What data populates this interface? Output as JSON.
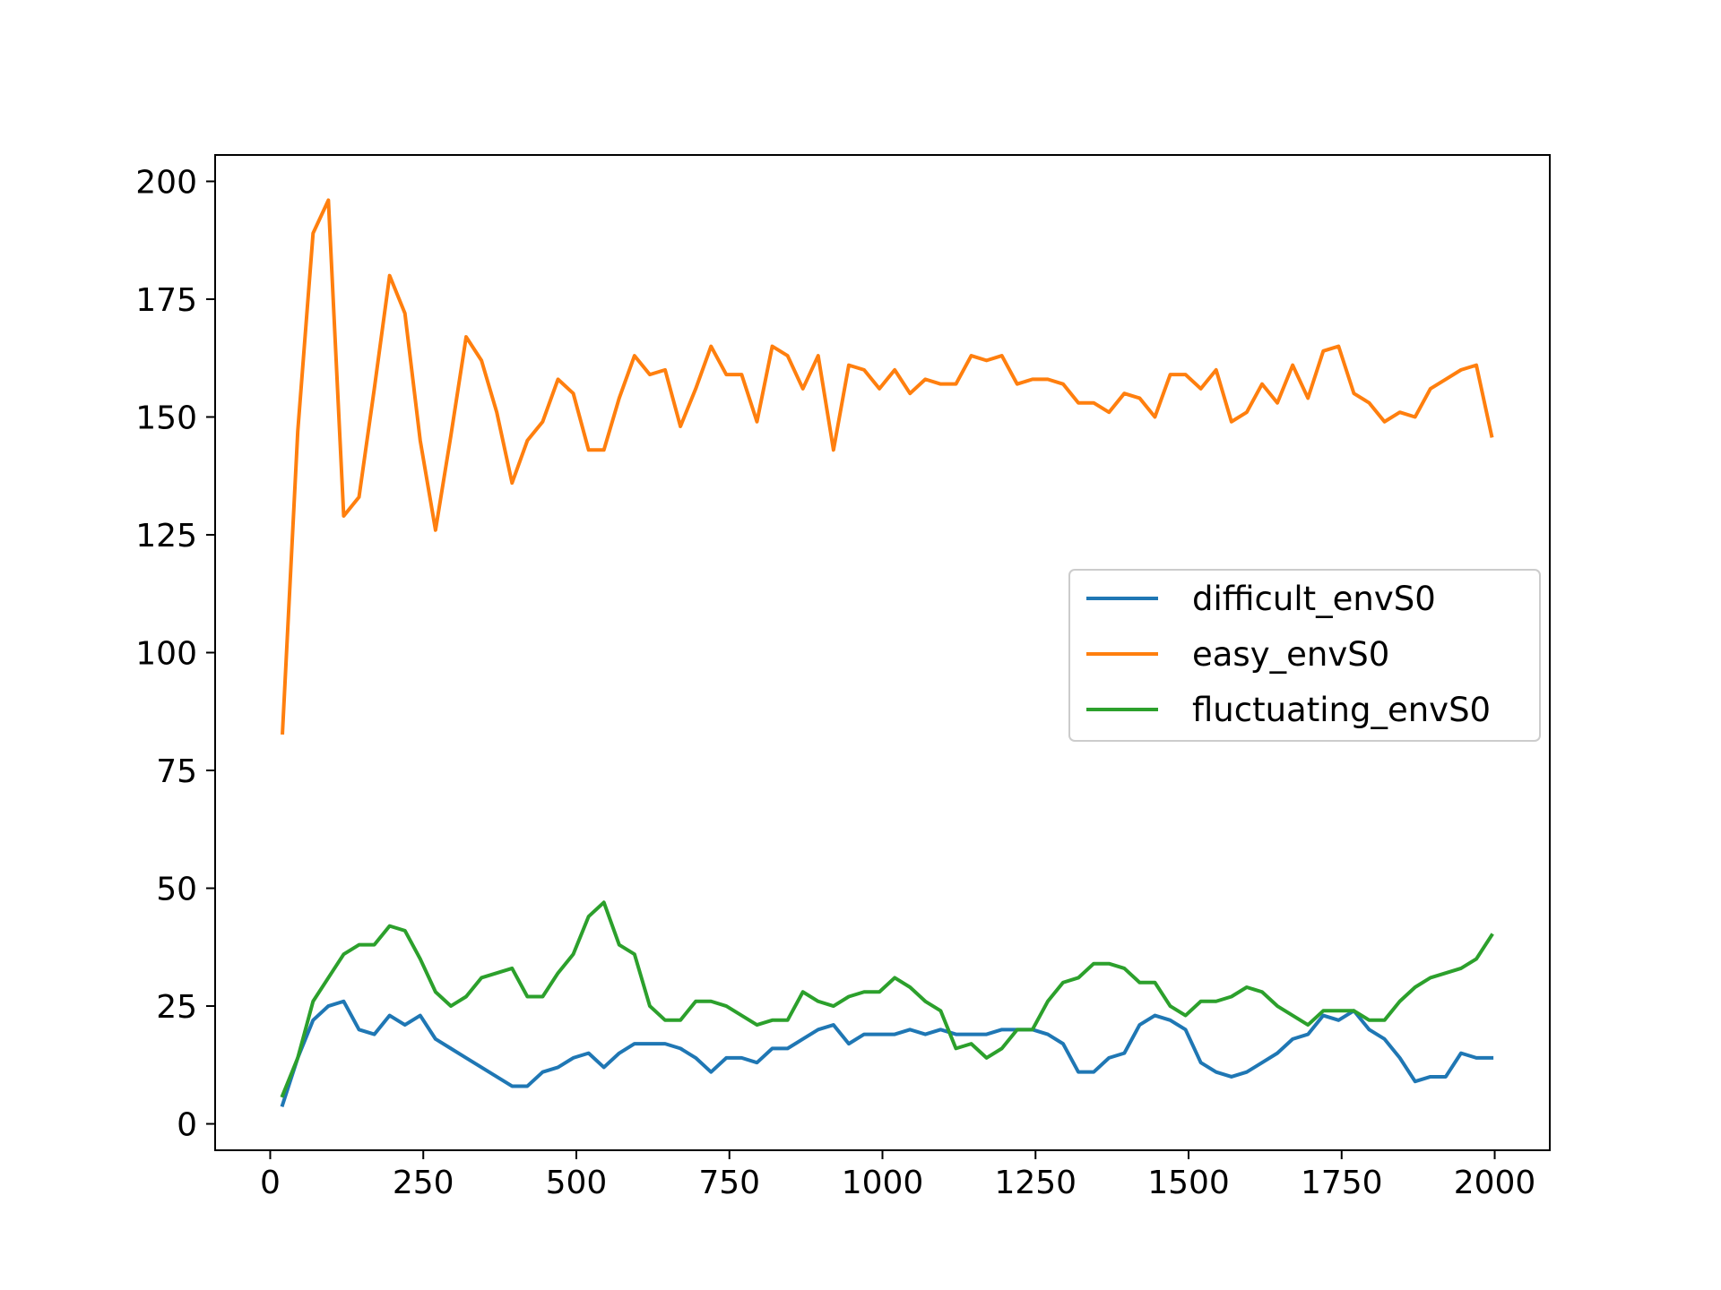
{
  "chart_data": {
    "type": "line",
    "title": "",
    "xlabel": "",
    "ylabel": "",
    "xlim": [
      -90,
      2090
    ],
    "ylim": [
      -5.6,
      205.6
    ],
    "xticks": [
      0,
      250,
      500,
      750,
      1000,
      1250,
      1500,
      1750,
      2000
    ],
    "yticks": [
      0,
      25,
      50,
      75,
      100,
      125,
      150,
      175,
      200
    ],
    "grid": false,
    "legend_position": "center-right",
    "x": [
      20,
      45,
      70,
      95,
      120,
      145,
      170,
      195,
      220,
      245,
      270,
      295,
      320,
      345,
      370,
      395,
      420,
      445,
      470,
      495,
      520,
      545,
      570,
      595,
      620,
      645,
      670,
      695,
      720,
      745,
      770,
      795,
      820,
      845,
      870,
      895,
      920,
      945,
      970,
      995,
      1020,
      1045,
      1070,
      1095,
      1120,
      1145,
      1170,
      1195,
      1220,
      1245,
      1270,
      1295,
      1320,
      1345,
      1370,
      1395,
      1420,
      1445,
      1470,
      1495,
      1520,
      1545,
      1570,
      1595,
      1620,
      1645,
      1670,
      1695,
      1720,
      1745,
      1770,
      1795,
      1820,
      1845,
      1870,
      1895,
      1920,
      1945,
      1970,
      1995
    ],
    "series": [
      {
        "name": "difficult_envS0",
        "color": "#1f77b4",
        "values": [
          4,
          14,
          22,
          25,
          26,
          20,
          19,
          23,
          21,
          23,
          18,
          16,
          14,
          12,
          10,
          8,
          8,
          11,
          12,
          14,
          15,
          12,
          15,
          17,
          17,
          17,
          16,
          14,
          11,
          14,
          14,
          13,
          16,
          16,
          18,
          20,
          21,
          17,
          19,
          19,
          19,
          20,
          19,
          20,
          19,
          19,
          19,
          20,
          20,
          20,
          19,
          17,
          11,
          11,
          14,
          15,
          21,
          23,
          22,
          20,
          13,
          11,
          10,
          11,
          13,
          15,
          18,
          19,
          23,
          22,
          24,
          20,
          18,
          14,
          9,
          10,
          10,
          15,
          14,
          14
        ]
      },
      {
        "name": "easy_envS0",
        "color": "#ff7f0e",
        "values": [
          83,
          147,
          189,
          196,
          129,
          133,
          156,
          180,
          172,
          145,
          126,
          146,
          167,
          162,
          151,
          136,
          145,
          149,
          158,
          155,
          143,
          143,
          154,
          163,
          159,
          160,
          148,
          156,
          165,
          159,
          159,
          149,
          165,
          163,
          156,
          163,
          143,
          161,
          160,
          156,
          160,
          155,
          158,
          157,
          157,
          163,
          162,
          163,
          157,
          158,
          158,
          157,
          153,
          153,
          151,
          155,
          154,
          150,
          159,
          159,
          156,
          160,
          149,
          151,
          157,
          153,
          161,
          154,
          164,
          165,
          155,
          153,
          149,
          151,
          150,
          156,
          158,
          160,
          161,
          146
        ]
      },
      {
        "name": "fluctuating_envS0",
        "color": "#2ca02c",
        "values": [
          6,
          14,
          26,
          31,
          36,
          38,
          38,
          42,
          41,
          35,
          28,
          25,
          27,
          31,
          32,
          33,
          27,
          27,
          32,
          36,
          44,
          47,
          38,
          36,
          25,
          22,
          22,
          26,
          26,
          25,
          23,
          21,
          22,
          22,
          28,
          26,
          25,
          27,
          28,
          28,
          31,
          29,
          26,
          24,
          16,
          17,
          14,
          16,
          20,
          20,
          26,
          30,
          31,
          34,
          34,
          33,
          30,
          30,
          25,
          23,
          26,
          26,
          27,
          29,
          28,
          25,
          23,
          21,
          24,
          24,
          24,
          22,
          22,
          26,
          29,
          31,
          32,
          33,
          35,
          40
        ]
      }
    ]
  }
}
